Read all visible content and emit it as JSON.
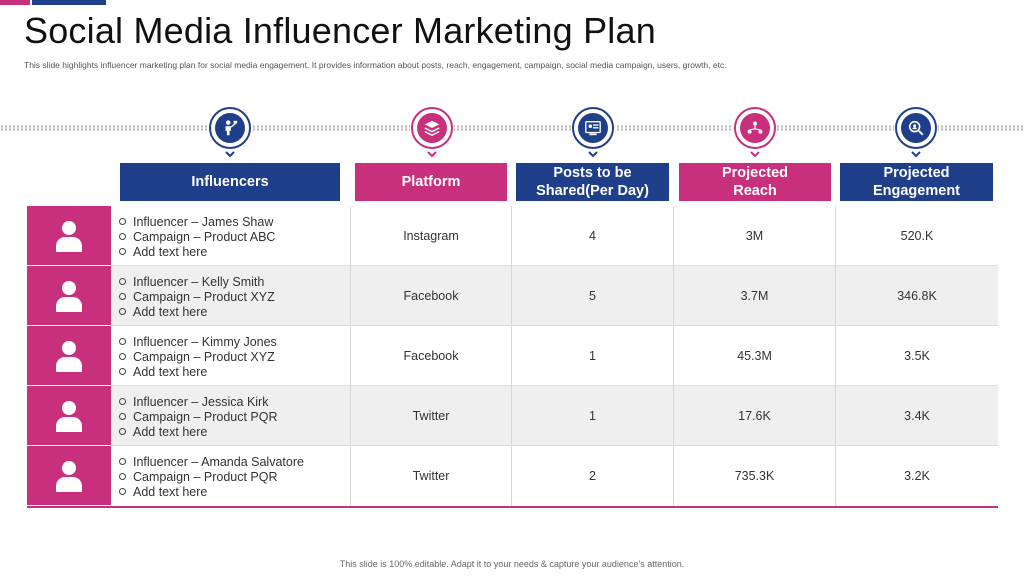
{
  "title": "Social Media Influencer Marketing Plan",
  "subtitle": "This slide highlights influencer marketing plan for social media engagement. It provides information about posts, reach, engagement, campaign, social media campaign, users, growth, etc.",
  "colors": {
    "navy": "#1f3f8a",
    "pink": "#c8307e"
  },
  "columns": [
    {
      "label": "Influencers",
      "icon": "person-presenting-icon",
      "color": "navy"
    },
    {
      "label": "Platform",
      "icon": "layers-icon",
      "color": "pink"
    },
    {
      "label": "Posts to be Shared(Per Day)",
      "icon": "social-post-icon",
      "color": "navy"
    },
    {
      "label": "Projected Reach",
      "icon": "network-users-icon",
      "color": "pink"
    },
    {
      "label": "Projected Engagement",
      "icon": "search-users-icon",
      "color": "navy"
    }
  ],
  "rows": [
    {
      "influencer": "Influencer  – James Shaw",
      "campaign": "Campaign – Product ABC",
      "extra": "Add text here",
      "platform": "Instagram",
      "posts": "4",
      "reach": "3M",
      "engagement": "520.K"
    },
    {
      "influencer": "Influencer  – Kelly Smith",
      "campaign": "Campaign – Product XYZ",
      "extra": "Add text here",
      "platform": "Facebook",
      "posts": "5",
      "reach": "3.7M",
      "engagement": "346.8K"
    },
    {
      "influencer": "Influencer  – Kimmy Jones",
      "campaign": "Campaign – Product XYZ",
      "extra": "Add text here",
      "platform": "Facebook",
      "posts": "1",
      "reach": "45.3M",
      "engagement": "3.5K"
    },
    {
      "influencer": "Influencer  – Jessica Kirk",
      "campaign": "Campaign – Product PQR",
      "extra": "Add text here",
      "platform": "Twitter",
      "posts": "1",
      "reach": "17.6K",
      "engagement": "3.4K"
    },
    {
      "influencer": "Influencer  – Amanda Salvatore",
      "campaign": "Campaign – Product PQR",
      "extra": "Add text here",
      "platform": "Twitter",
      "posts": "2",
      "reach": "735.3K",
      "engagement": "3.2K"
    }
  ],
  "footer": "This slide is 100% editable. Adapt it to your needs & capture your audience’s attention."
}
